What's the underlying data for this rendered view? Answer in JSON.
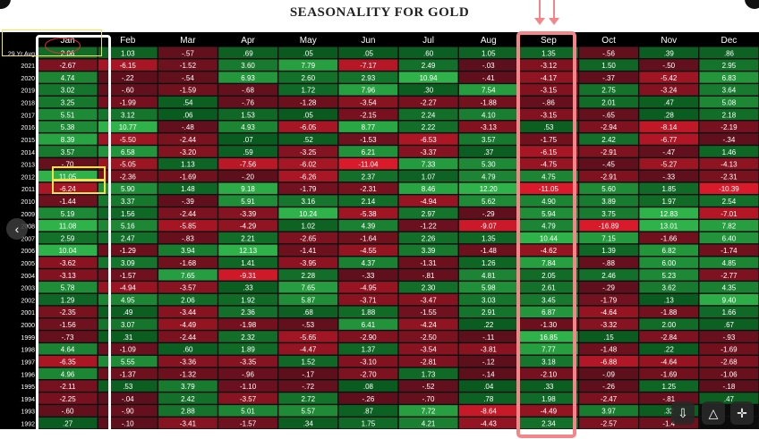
{
  "title": "SEASONALITY FOR GOLD",
  "colors": {
    "background": "#000000",
    "grid": "#1a1a1a",
    "header_text": "#ffffff",
    "deep_green": "#0a5a1f",
    "bright_green": "#2fb24a",
    "deep_red": "#5c0f1c",
    "bright_red": "#d81a2a",
    "highlight_sep": "#f4868a",
    "highlight_jan": "#ffffff",
    "highlight_yellow": "#f4e04a"
  },
  "chart_data": {
    "type": "heatmap",
    "title": "SEASONALITY FOR GOLD",
    "columns": [
      "Jan",
      "Feb",
      "Mar",
      "Apr",
      "May",
      "Jun",
      "Jul",
      "Aug",
      "Sep",
      "Oct",
      "Nov",
      "Dec"
    ],
    "rows": [
      {
        "label": "29 Yr Avg",
        "values": [
          "2.06",
          "1.03",
          "-.57",
          ".69",
          ".05",
          ".05",
          ".60",
          "1.05",
          "1.35",
          "-.56",
          ".39",
          ".86"
        ]
      },
      {
        "label": "2021",
        "values": [
          "-2.67",
          "-6.15",
          "-1.52",
          "3.60",
          "7.79",
          "-7.17",
          "2.49",
          "-.03",
          "-3.12",
          "1.50",
          "-.50",
          "2.95"
        ]
      },
      {
        "label": "2020",
        "values": [
          "4.74",
          "-.22",
          "-.54",
          "6.93",
          "2.60",
          "2.93",
          "10.94",
          "-.41",
          "-4.17",
          "-.37",
          "-5.42",
          "6.83"
        ]
      },
      {
        "label": "2019",
        "values": [
          "3.02",
          "-.60",
          "-1.59",
          "-.68",
          "1.72",
          "7.96",
          ".30",
          "7.54",
          "-3.15",
          "2.75",
          "-3.24",
          "3.64"
        ]
      },
      {
        "label": "2018",
        "values": [
          "3.25",
          "-1.99",
          ".54",
          "-.76",
          "-1.28",
          "-3.54",
          "-2.27",
          "-1.88",
          "-.86",
          "2.01",
          ".47",
          "5.08"
        ]
      },
      {
        "label": "2017",
        "values": [
          "5.51",
          "3.12",
          ".06",
          "1.53",
          ".05",
          "-2.15",
          "2.24",
          "4.10",
          "-3.15",
          "-.65",
          ".28",
          "2.18"
        ]
      },
      {
        "label": "2016",
        "values": [
          "5.38",
          "10.77",
          "-.48",
          "4.93",
          "-6.05",
          "8.77",
          "2.22",
          "-3.13",
          ".53",
          "-2.94",
          "-8.14",
          "-2.19"
        ]
      },
      {
        "label": "2015",
        "values": [
          "8.39",
          "-5.50",
          "-2.44",
          ".07",
          ".52",
          "-1.53",
          "-6.53",
          "3.57",
          "-1.75",
          "2.42",
          "-6.77",
          "-.34"
        ]
      },
      {
        "label": "2014",
        "values": [
          "3.57",
          "6.58",
          "-3.20",
          ".59",
          "-3.25",
          "6.21",
          "-3.37",
          ".37",
          "-6.15",
          "-2.91",
          "-.47",
          "1.46"
        ]
      },
      {
        "label": "2013",
        "values": [
          "-.70",
          "-5.05",
          "1.13",
          "-7.56",
          "-6.02",
          "-11.04",
          "7.33",
          "5.30",
          "-4.75",
          "-.45",
          "-5.27",
          "-4.13"
        ]
      },
      {
        "label": "2012",
        "values": [
          "11.05",
          "-2.36",
          "-1.69",
          "-.20",
          "-6.26",
          "2.37",
          "1.07",
          "4.79",
          "4.75",
          "-2.91",
          "-.33",
          "-2.31"
        ]
      },
      {
        "label": "2011",
        "values": [
          "-6.24",
          "5.90",
          "1.48",
          "9.18",
          "-1.79",
          "-2.31",
          "8.46",
          "12.20",
          "-11.05",
          "5.60",
          "1.85",
          "-10.39"
        ]
      },
      {
        "label": "2010",
        "values": [
          "-1.44",
          "3.37",
          "-.39",
          "5.91",
          "3.16",
          "2.14",
          "-4.94",
          "5.62",
          "4.90",
          "3.89",
          "1.97",
          "2.54"
        ]
      },
      {
        "label": "2009",
        "values": [
          "5.19",
          "1.56",
          "-2.44",
          "-3.39",
          "10.24",
          "-5.38",
          "2.97",
          "-.29",
          "5.94",
          "3.75",
          "12.83",
          "-7.01"
        ]
      },
      {
        "label": "2008",
        "values": [
          "11.08",
          "5.16",
          "-5.85",
          "-4.29",
          "1.02",
          "4.39",
          "-1.22",
          "-9.07",
          "4.79",
          "-16.89",
          "13.01",
          "7.82"
        ]
      },
      {
        "label": "2007",
        "values": [
          "2.59",
          "2.47",
          "-.83",
          "2.21",
          "-2.65",
          "-1.64",
          "2.26",
          "1.35",
          "10.44",
          "7.15",
          "-1.66",
          "6.40"
        ]
      },
      {
        "label": "2006",
        "values": [
          "10.04",
          "-1.29",
          "3.94",
          "12.13",
          "-1.41",
          "-4.55",
          "3.39",
          "-1.48",
          "-4.62",
          "1.39",
          "6.82",
          "-1.74"
        ]
      },
      {
        "label": "2005",
        "values": [
          "-3.62",
          "3.09",
          "-1.68",
          "1.41",
          "-3.95",
          "4.37",
          "-1.31",
          "1.26",
          "7.84",
          "-.88",
          "6.00",
          "4.85"
        ]
      },
      {
        "label": "2004",
        "values": [
          "-3.13",
          "-1.57",
          "7.65",
          "-9.31",
          "2.28",
          "-.33",
          "-.81",
          "4.81",
          "2.05",
          "2.46",
          "5.23",
          "-2.77"
        ]
      },
      {
        "label": "2003",
        "values": [
          "5.78",
          "-4.94",
          "-3.57",
          ".33",
          "7.65",
          "-4.95",
          "2.30",
          "5.98",
          "2.61",
          "-.29",
          "3.62",
          "4.35"
        ]
      },
      {
        "label": "2002",
        "values": [
          "1.29",
          "4.95",
          "2.06",
          "1.92",
          "5.87",
          "-3.71",
          "-3.47",
          "3.03",
          "3.45",
          "-1.79",
          ".13",
          "9.40"
        ]
      },
      {
        "label": "2001",
        "values": [
          "-2.35",
          ".49",
          "-3.44",
          "2.36",
          ".68",
          "1.88",
          "-1.55",
          "2.91",
          "6.87",
          "-4.64",
          "-1.88",
          "1.66"
        ]
      },
      {
        "label": "2000",
        "values": [
          "-1.56",
          "3.07",
          "-4.49",
          "-1.98",
          "-.53",
          "6.41",
          "-4.24",
          ".22",
          "-1.30",
          "-3.32",
          "2.00",
          ".67"
        ]
      },
      {
        "label": "1999",
        "values": [
          "-.73",
          ".31",
          "-2.44",
          "2.32",
          "-5.65",
          "-2.90",
          "-2.50",
          "-.11",
          "16.85",
          ".15",
          "-2.84",
          "-.93"
        ]
      },
      {
        "label": "1998",
        "values": [
          "4.64",
          "-1.09",
          ".60",
          "1.89",
          "-4.47",
          "1.37",
          "-3.54",
          "-3.81",
          "7.77",
          "-1.48",
          ".22",
          "-1.69"
        ]
      },
      {
        "label": "1997",
        "values": [
          "-6.35",
          "5.55",
          "-3.36",
          "-3.35",
          "1.52",
          "-3.10",
          "-2.81",
          "-.12",
          "3.18",
          "-6.88",
          "-4.64",
          "-2.68"
        ]
      },
      {
        "label": "1996",
        "values": [
          "4.96",
          "-1.37",
          "-1.32",
          "-.96",
          "-.17",
          "-2.70",
          "1.73",
          "-.14",
          "-2.10",
          "-.09",
          "-1.69",
          "-1.06"
        ]
      },
      {
        "label": "1995",
        "values": [
          "-2.11",
          ".53",
          "3.79",
          "-1.10",
          "-.72",
          ".08",
          "-.52",
          ".04",
          ".33",
          "-.26",
          "1.25",
          "-.18"
        ]
      },
      {
        "label": "1994",
        "values": [
          "-2.25",
          "-.04",
          "2.42",
          "-3.57",
          "2.72",
          "-.26",
          "-.70",
          ".78",
          "1.98",
          "-2.47",
          "-.81",
          ".47"
        ]
      },
      {
        "label": "1993",
        "values": [
          "-.60",
          "-.90",
          "2.88",
          "5.01",
          "5.57",
          ".87",
          "7.72",
          "-8.64",
          "-4.49",
          "3.97",
          ".32",
          ""
        ]
      },
      {
        "label": "1992",
        "values": [
          ".27",
          "-.10",
          "-3.41",
          "-1.57",
          ".34",
          "1.75",
          "4.21",
          "-4.43",
          "2.34",
          "-2.57",
          "-1.4",
          ""
        ]
      }
    ],
    "highlighted_columns": [
      "Jan",
      "Sep"
    ],
    "highlighted_cells": [
      {
        "row": "29 Yr Avg",
        "column": "Jan"
      },
      {
        "row": "2012",
        "column": "Jan"
      },
      {
        "row": "2011",
        "column": "Jan"
      }
    ]
  },
  "icons": [
    "chevron-left-icon",
    "download-icon",
    "share-icon",
    "expand-icon"
  ]
}
